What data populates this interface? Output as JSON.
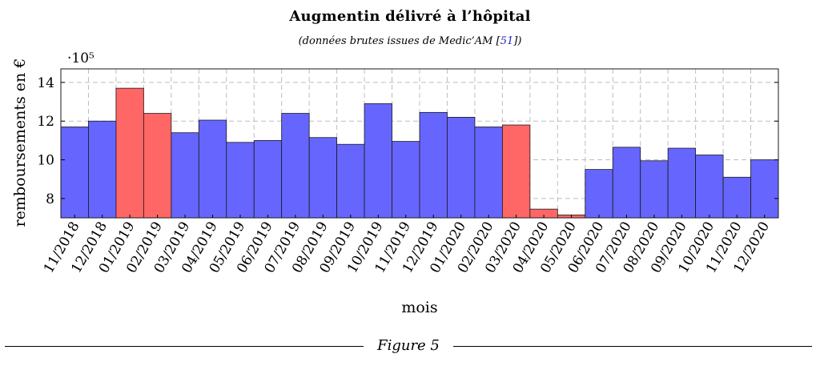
{
  "chart_data": {
    "type": "bar",
    "title": "Augmentin délivré à l’hôpital",
    "subtitle_prefix": "(données brutes issues de Medic’AM [",
    "subtitle_ref": "51",
    "subtitle_suffix": "])",
    "xlabel": "mois",
    "ylabel": "remboursements en €",
    "y_scale_label": "·10⁵",
    "ylim": [
      7.0,
      14.7
    ],
    "yticks": [
      8,
      10,
      12,
      14
    ],
    "grid": true,
    "categories": [
      "11/2018",
      "12/2018",
      "01/2019",
      "02/2019",
      "03/2019",
      "04/2019",
      "05/2019",
      "06/2019",
      "07/2019",
      "08/2019",
      "09/2019",
      "10/2019",
      "11/2019",
      "12/2019",
      "01/2020",
      "02/2020",
      "03/2020",
      "04/2020",
      "05/2020",
      "06/2020",
      "07/2020",
      "08/2020",
      "09/2020",
      "10/2020",
      "11/2020",
      "12/2020"
    ],
    "values": [
      11.7,
      12.0,
      13.7,
      12.4,
      11.4,
      12.05,
      10.9,
      11.0,
      12.4,
      11.15,
      10.8,
      12.9,
      10.95,
      12.45,
      12.2,
      11.7,
      11.8,
      7.45,
      7.15,
      9.5,
      10.65,
      9.95,
      10.6,
      10.25,
      9.1,
      10.0
    ],
    "highlight": [
      false,
      false,
      true,
      true,
      false,
      false,
      false,
      false,
      false,
      false,
      false,
      false,
      false,
      false,
      false,
      false,
      true,
      true,
      true,
      false,
      false,
      false,
      false,
      false,
      false,
      false
    ],
    "colors": {
      "normal": "#6666ff",
      "highlight": "#ff6666",
      "grid": "#bdbdbd",
      "stroke": "#1a1a1a",
      "ref": "#2222cc"
    }
  },
  "figure_caption": "Figure 5"
}
